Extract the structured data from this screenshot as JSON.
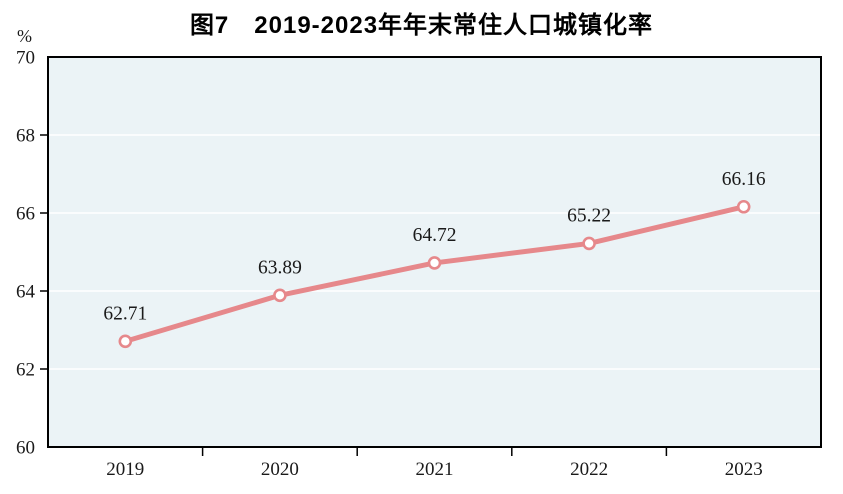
{
  "title": "图7　2019-2023年年末常住人口城镇化率",
  "y_unit": "%",
  "colors": {
    "line": "#E6888B",
    "marker_fill": "#FFFFFF",
    "marker_stroke": "#E6888B",
    "plot_bg": "#EBF3F6",
    "gridline": "#FFFFFF",
    "axis_border": "#000000",
    "text": "#1A1A1A"
  },
  "chart_data": {
    "type": "line",
    "title": "图7　2019-2023年年末常住人口城镇化率",
    "categories": [
      "2019",
      "2020",
      "2021",
      "2022",
      "2023"
    ],
    "values": [
      62.71,
      63.89,
      64.72,
      65.22,
      66.16
    ],
    "point_labels": [
      "62.71",
      "63.89",
      "64.72",
      "65.22",
      "66.16"
    ],
    "xlabel": "",
    "ylabel": "%",
    "ylim": [
      60,
      70
    ],
    "y_ticks": [
      60,
      62,
      64,
      66,
      68,
      70
    ],
    "grid": "horizontal",
    "legend_position": "none",
    "marker": "open-circle"
  }
}
